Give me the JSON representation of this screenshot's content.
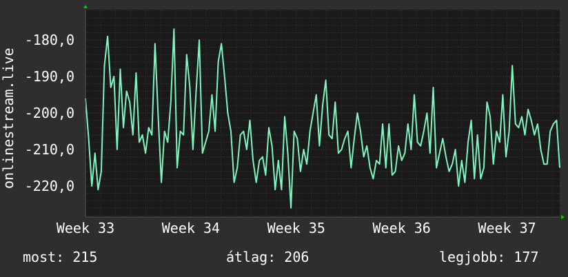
{
  "chart_data": {
    "type": "line",
    "ylabel": "onlinestream.live",
    "x_tick_labels": [
      "Week 33",
      "Week 34",
      "Week 35",
      "Week 36",
      "Week 37"
    ],
    "y_tick_labels": [
      "-180,0",
      "-190,0",
      "-200,0",
      "-210,0",
      "-220,0"
    ],
    "y_ticks": [
      -180,
      -190,
      -200,
      -210,
      -220
    ],
    "xlim": [
      0,
      4.5
    ],
    "ylim": [
      -228,
      -171
    ],
    "grid": true,
    "colors": {
      "background": "#2e2e2e",
      "plot_area": "#1a1a1a",
      "line": "#7ff5c0",
      "axis_arrow": "#00cc00",
      "text": "#ffffff"
    },
    "series": [
      {
        "x": [
          0.0,
          0.03,
          0.06,
          0.09,
          0.12,
          0.15,
          0.18,
          0.21,
          0.24,
          0.27,
          0.3,
          0.33,
          0.36,
          0.39,
          0.42,
          0.45,
          0.48,
          0.51,
          0.54,
          0.57,
          0.6,
          0.63,
          0.66,
          0.69,
          0.72,
          0.75,
          0.78,
          0.81,
          0.84,
          0.87,
          0.9,
          0.93,
          0.96,
          0.99,
          1.02,
          1.05,
          1.08,
          1.11,
          1.14,
          1.17,
          1.2,
          1.23,
          1.26,
          1.29,
          1.32,
          1.35,
          1.38,
          1.41,
          1.44,
          1.47,
          1.5,
          1.53,
          1.56,
          1.59,
          1.62,
          1.65,
          1.68,
          1.71,
          1.74,
          1.77,
          1.8,
          1.83,
          1.86,
          1.89,
          1.92,
          1.95,
          1.98,
          2.01,
          2.04,
          2.07,
          2.1,
          2.13,
          2.16,
          2.19,
          2.22,
          2.25,
          2.28,
          2.31,
          2.34,
          2.37,
          2.4,
          2.43,
          2.46,
          2.49,
          2.52,
          2.55,
          2.58,
          2.61,
          2.64,
          2.67,
          2.7,
          2.73,
          2.76,
          2.79,
          2.82,
          2.85,
          2.88,
          2.91,
          2.94,
          2.97,
          3.0,
          3.03,
          3.06,
          3.09,
          3.12,
          3.15,
          3.18,
          3.21,
          3.24,
          3.27,
          3.3,
          3.33,
          3.36,
          3.39,
          3.42,
          3.45,
          3.48,
          3.51,
          3.54,
          3.57,
          3.6,
          3.63,
          3.66,
          3.69,
          3.72,
          3.75,
          3.78,
          3.81,
          3.84,
          3.87,
          3.9,
          3.93,
          3.96,
          3.99,
          4.02,
          4.05,
          4.08,
          4.11,
          4.14,
          4.17,
          4.2,
          4.23,
          4.26,
          4.29,
          4.32,
          4.35,
          4.38,
          4.41,
          4.44,
          4.47,
          4.5
        ],
        "y": [
          -196,
          -207,
          -220,
          -211,
          -221,
          -216,
          -187,
          -179,
          -193,
          -190,
          -210,
          -188,
          -204,
          -194,
          -197,
          -206,
          -189,
          -208,
          -206,
          -211,
          -204,
          -206,
          -181,
          -201,
          -219,
          -205,
          -208,
          -197,
          -177,
          -215,
          -205,
          -206,
          -184,
          -193,
          -210,
          -194,
          -180,
          -211,
          -208,
          -205,
          -195,
          -205,
          -186,
          -181,
          -190,
          -200,
          -205,
          -219,
          -215,
          -206,
          -205,
          -210,
          -202,
          -213,
          -219,
          -213,
          -212,
          -217,
          -204,
          -209,
          -221,
          -213,
          -221,
          -201,
          -211,
          -226,
          -205,
          -207,
          -216,
          -210,
          -214,
          -205,
          -200,
          -195,
          -209,
          -198,
          -191,
          -206,
          -207,
          -197,
          -211,
          -210,
          -207,
          -205,
          -215,
          -207,
          -200,
          -205,
          -212,
          -209,
          -215,
          -218,
          -213,
          -214,
          -203,
          -215,
          -203,
          -217,
          -216,
          -209,
          -213,
          -211,
          -203,
          -210,
          -195,
          -208,
          -209,
          -205,
          -200,
          -211,
          -193,
          -215,
          -211,
          -207,
          -212,
          -216,
          -214,
          -210,
          -220,
          -213,
          -219,
          -208,
          -202,
          -218,
          -206,
          -218,
          -215,
          -197,
          -201,
          -214,
          -205,
          -208,
          -195,
          -212,
          -205,
          -187,
          -203,
          -204,
          -201,
          -206,
          -199,
          -202,
          -206,
          -203,
          -210,
          -214,
          -214,
          -205,
          -203,
          -202,
          -215
        ]
      }
    ],
    "axis_arrows": {
      "y": "top",
      "x": "right"
    }
  },
  "footer": {
    "current": "most: 215",
    "average": "átlag: 206",
    "best": "legjobb: 177"
  }
}
